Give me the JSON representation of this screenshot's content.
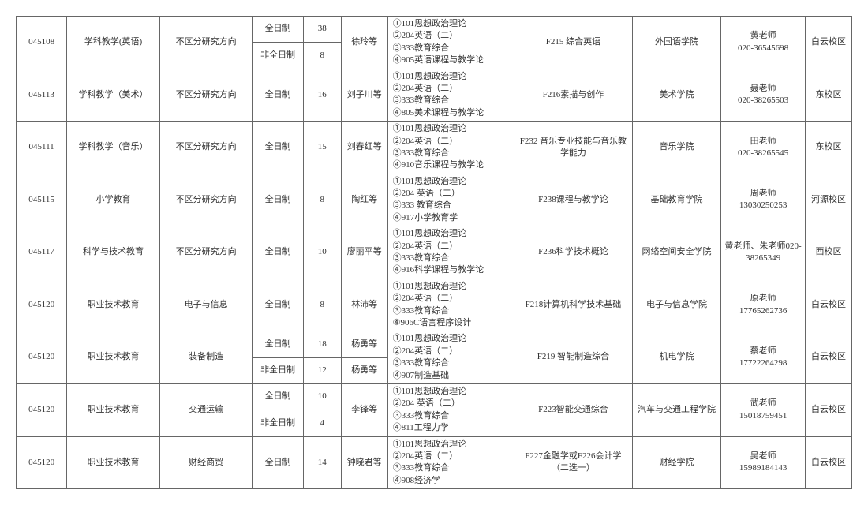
{
  "rows": [
    {
      "code": "045108",
      "name": "学科教学(英语)",
      "dir": "不区分研究方向",
      "modes": [
        {
          "mode": "全日制",
          "num": "38"
        },
        {
          "mode": "非全日制",
          "num": "8"
        }
      ],
      "advisor": "徐玲等",
      "exam": "①101思想政治理论\n②204英语（二）\n③333教育综合\n④905英语课程与教学论",
      "retest": "F215 综合英语",
      "college": "外国语学院",
      "contact": "黄老师\n020-36545698",
      "campus": "白云校区"
    },
    {
      "code": "045113",
      "name": "学科教学（美术）",
      "dir": "不区分研究方向",
      "modes": [
        {
          "mode": "全日制",
          "num": "16"
        }
      ],
      "advisor": "刘子川等",
      "exam": "①101思想政治理论\n②204英语（二）\n③333教育综合\n④805美术课程与教学论",
      "retest": "F216素描与创作",
      "college": "美术学院",
      "contact": "聂老师\n020-38265503",
      "campus": "东校区"
    },
    {
      "code": "045111",
      "name": "学科教学（音乐）",
      "dir": "不区分研究方向",
      "modes": [
        {
          "mode": "全日制",
          "num": "15"
        }
      ],
      "advisor": "刘春红等",
      "exam": "①101思想政治理论\n②204英语（二）\n③333教育综合\n④910音乐课程与教学论",
      "retest": "F232 音乐专业技能与音乐教学能力",
      "college": "音乐学院",
      "contact": "田老师\n020-38265545",
      "campus": "东校区"
    },
    {
      "code": "045115",
      "name": "小学教育",
      "dir": "不区分研究方向",
      "modes": [
        {
          "mode": "全日制",
          "num": "8"
        }
      ],
      "advisor": "陶红等",
      "exam": "①101思想政治理论\n②204 英语（二）\n③333 教育综合\n④917小学教育学",
      "retest": "F238课程与教学论",
      "college": "基础教育学院",
      "contact": "周老师\n13030250253",
      "campus": "河源校区"
    },
    {
      "code": "045117",
      "name": "科学与技术教育",
      "dir": "不区分研究方向",
      "modes": [
        {
          "mode": "全日制",
          "num": "10"
        }
      ],
      "advisor": "廖丽平等",
      "exam": "①101思想政治理论\n②204英语（二）\n③333教育综合\n④916科学课程与教学论",
      "retest": "F236科学技术概论",
      "college": "网络空间安全学院",
      "contact": "黄老师、朱老师020-38265349",
      "campus": "西校区"
    },
    {
      "code": "045120",
      "name": "职业技术教育",
      "dir": "电子与信息",
      "modes": [
        {
          "mode": "全日制",
          "num": "8"
        }
      ],
      "advisor": "林沛等",
      "exam": "①101思想政治理论\n②204英语（二）\n③333教育综合\n④906C语言程序设计",
      "retest": "F218计算机科学技术基础",
      "college": "电子与信息学院",
      "contact": "原老师\n17765262736",
      "campus": "白云校区"
    },
    {
      "code": "045120",
      "name": "职业技术教育",
      "dir": "装备制造",
      "modes": [
        {
          "mode": "全日制",
          "num": "18",
          "adv": "杨勇等"
        },
        {
          "mode": "非全日制",
          "num": "12",
          "adv": "杨勇等"
        }
      ],
      "exam": "①101思想政治理论\n②204英语（二）\n③333教育综合\n④907制造基础",
      "retest": "F219 智能制造综合",
      "college": "机电学院",
      "contact": "蔡老师\n17722264298",
      "campus": "白云校区"
    },
    {
      "code": "045120",
      "name": "职业技术教育",
      "dir": "交通运输",
      "modes": [
        {
          "mode": "全日制",
          "num": "10"
        },
        {
          "mode": "非全日制",
          "num": "4"
        }
      ],
      "advisor": "李锋等",
      "exam": "①101思想政治理论\n②204 英语（二）\n③333教育综合\n④811工程力学",
      "retest": "F223智能交通综合",
      "college": "汽车与交通工程学院",
      "contact": "武老师\n15018759451",
      "campus": "白云校区"
    },
    {
      "code": "045120",
      "name": "职业技术教育",
      "dir": "财经商贸",
      "modes": [
        {
          "mode": "全日制",
          "num": "14"
        }
      ],
      "advisor": "钟晓君等",
      "exam": "①101思想政治理论\n②204英语（二）\n③333教育综合\n④908经济学",
      "retest": "F227金融学或F226会计学（二选一）",
      "college": "财经学院",
      "contact": "吴老师\n15989184143",
      "campus": "白云校区"
    }
  ]
}
